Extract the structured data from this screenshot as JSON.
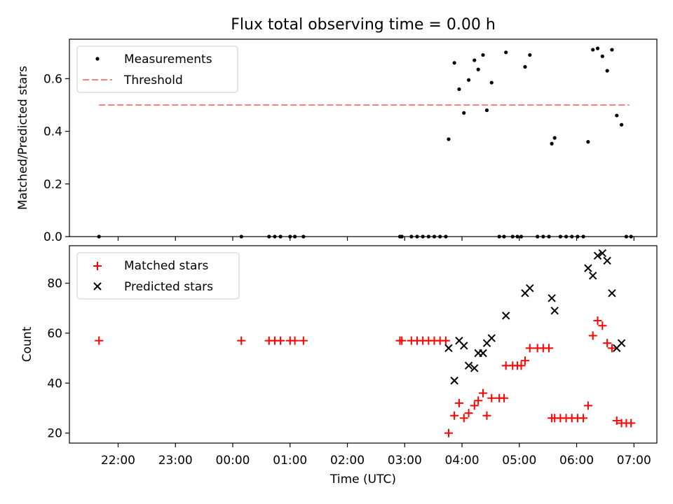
{
  "chart_data": [
    {
      "type": "scatter",
      "title": "Flux total observing time = 0.00 h",
      "ylabel": "Matched/Predicted stars",
      "xlabel": "",
      "ylim": [
        0.0,
        0.75
      ],
      "yticks": [
        0.0,
        0.2,
        0.4,
        0.6
      ],
      "ytick_labels": [
        "0.0",
        "0.2",
        "0.4",
        "0.6"
      ],
      "grid": false,
      "legend_position": "top-left",
      "series": [
        {
          "name": "Measurements",
          "style": "dot",
          "color": "#000000",
          "points": [
            [
              "21:40",
              0.0
            ],
            [
              "00:09",
              0.0
            ],
            [
              "00:38",
              0.0
            ],
            [
              "00:44",
              0.0
            ],
            [
              "00:50",
              0.0
            ],
            [
              "01:00",
              0.0
            ],
            [
              "01:05",
              0.0
            ],
            [
              "01:14",
              0.0
            ],
            [
              "02:55",
              0.0
            ],
            [
              "02:57",
              0.0
            ],
            [
              "03:07",
              0.0
            ],
            [
              "03:13",
              0.0
            ],
            [
              "03:19",
              0.0
            ],
            [
              "03:25",
              0.0
            ],
            [
              "03:31",
              0.0
            ],
            [
              "03:37",
              0.0
            ],
            [
              "03:43",
              0.0
            ],
            [
              "03:46",
              0.37
            ],
            [
              "03:52",
              0.66
            ],
            [
              "03:57",
              0.56
            ],
            [
              "04:02",
              0.47
            ],
            [
              "04:07",
              0.595
            ],
            [
              "04:13",
              0.67
            ],
            [
              "04:17",
              0.635
            ],
            [
              "04:22",
              0.69
            ],
            [
              "04:26",
              0.48
            ],
            [
              "04:31",
              0.585
            ],
            [
              "04:39",
              0.0
            ],
            [
              "04:44",
              0.0
            ],
            [
              "04:46",
              0.7
            ],
            [
              "04:53",
              0.0
            ],
            [
              "04:58",
              0.0
            ],
            [
              "05:02",
              0.0
            ],
            [
              "05:06",
              0.645
            ],
            [
              "05:11",
              0.69
            ],
            [
              "05:19",
              0.0
            ],
            [
              "05:25",
              0.0
            ],
            [
              "05:31",
              0.0
            ],
            [
              "05:34",
              0.353
            ],
            [
              "05:37",
              0.375
            ],
            [
              "05:43",
              0.0
            ],
            [
              "05:49",
              0.0
            ],
            [
              "05:55",
              0.0
            ],
            [
              "06:01",
              0.0
            ],
            [
              "06:07",
              0.0
            ],
            [
              "06:12",
              0.36
            ],
            [
              "06:17",
              0.71
            ],
            [
              "06:22",
              0.715
            ],
            [
              "06:27",
              0.685
            ],
            [
              "06:32",
              0.63
            ],
            [
              "06:37",
              0.71
            ],
            [
              "06:42",
              0.46
            ],
            [
              "06:47",
              0.425
            ],
            [
              "06:52",
              0.0
            ],
            [
              "06:57",
              0.0
            ]
          ]
        },
        {
          "name": "Threshold",
          "style": "dashed-line",
          "color": "#ff7f7f",
          "points": [
            [
              "21:40",
              0.5
            ],
            [
              "06:55",
              0.5
            ]
          ]
        }
      ]
    },
    {
      "type": "scatter",
      "title": "",
      "ylabel": "Count",
      "xlabel": "Time (UTC)",
      "ylim": [
        16,
        95
      ],
      "yticks": [
        20,
        40,
        60,
        80
      ],
      "ytick_labels": [
        "20",
        "40",
        "60",
        "80"
      ],
      "xlim": [
        "21:09",
        "07:24"
      ],
      "xticks": [
        "22:00",
        "23:00",
        "00:00",
        "01:00",
        "02:00",
        "03:00",
        "04:00",
        "05:00",
        "06:00",
        "07:00"
      ],
      "grid": false,
      "legend_position": "top-left",
      "series": [
        {
          "name": "Matched stars",
          "marker": "plus",
          "color": "#ff0000",
          "points": [
            [
              "21:40",
              57
            ],
            [
              "00:09",
              57
            ],
            [
              "00:38",
              57
            ],
            [
              "00:44",
              57
            ],
            [
              "00:50",
              57
            ],
            [
              "01:00",
              57
            ],
            [
              "01:05",
              57
            ],
            [
              "01:14",
              57
            ],
            [
              "02:55",
              57
            ],
            [
              "02:57",
              57
            ],
            [
              "03:07",
              57
            ],
            [
              "03:13",
              57
            ],
            [
              "03:19",
              57
            ],
            [
              "03:25",
              57
            ],
            [
              "03:31",
              57
            ],
            [
              "03:37",
              57
            ],
            [
              "03:43",
              57
            ],
            [
              "03:46",
              20
            ],
            [
              "03:52",
              27
            ],
            [
              "03:57",
              32
            ],
            [
              "04:02",
              26
            ],
            [
              "04:07",
              28
            ],
            [
              "04:13",
              31
            ],
            [
              "04:17",
              33
            ],
            [
              "04:22",
              36
            ],
            [
              "04:26",
              27
            ],
            [
              "04:31",
              34
            ],
            [
              "04:39",
              34
            ],
            [
              "04:44",
              34
            ],
            [
              "04:46",
              47
            ],
            [
              "04:53",
              47
            ],
            [
              "04:58",
              47
            ],
            [
              "05:02",
              47
            ],
            [
              "05:06",
              49
            ],
            [
              "05:11",
              54
            ],
            [
              "05:19",
              54
            ],
            [
              "05:25",
              54
            ],
            [
              "05:31",
              54
            ],
            [
              "05:34",
              26
            ],
            [
              "05:37",
              26
            ],
            [
              "05:43",
              26
            ],
            [
              "05:49",
              26
            ],
            [
              "05:55",
              26
            ],
            [
              "06:01",
              26
            ],
            [
              "06:07",
              26
            ],
            [
              "06:12",
              31
            ],
            [
              "06:17",
              59
            ],
            [
              "06:22",
              65
            ],
            [
              "06:27",
              63
            ],
            [
              "06:32",
              56
            ],
            [
              "06:37",
              54
            ],
            [
              "06:42",
              25
            ],
            [
              "06:47",
              24
            ],
            [
              "06:52",
              24
            ],
            [
              "06:57",
              24
            ]
          ]
        },
        {
          "name": "Predicted stars",
          "marker": "x",
          "color": "#000000",
          "points": [
            [
              "03:46",
              54
            ],
            [
              "03:52",
              41
            ],
            [
              "03:57",
              57
            ],
            [
              "04:02",
              55
            ],
            [
              "04:07",
              47
            ],
            [
              "04:13",
              46
            ],
            [
              "04:17",
              52
            ],
            [
              "04:22",
              52
            ],
            [
              "04:26",
              56
            ],
            [
              "04:31",
              58
            ],
            [
              "04:46",
              67
            ],
            [
              "05:06",
              76
            ],
            [
              "05:11",
              78
            ],
            [
              "05:34",
              74
            ],
            [
              "05:37",
              69
            ],
            [
              "06:12",
              86
            ],
            [
              "06:17",
              83
            ],
            [
              "06:22",
              91
            ],
            [
              "06:27",
              92
            ],
            [
              "06:32",
              89
            ],
            [
              "06:37",
              76
            ],
            [
              "06:42",
              54
            ],
            [
              "06:47",
              56
            ]
          ]
        }
      ]
    }
  ]
}
